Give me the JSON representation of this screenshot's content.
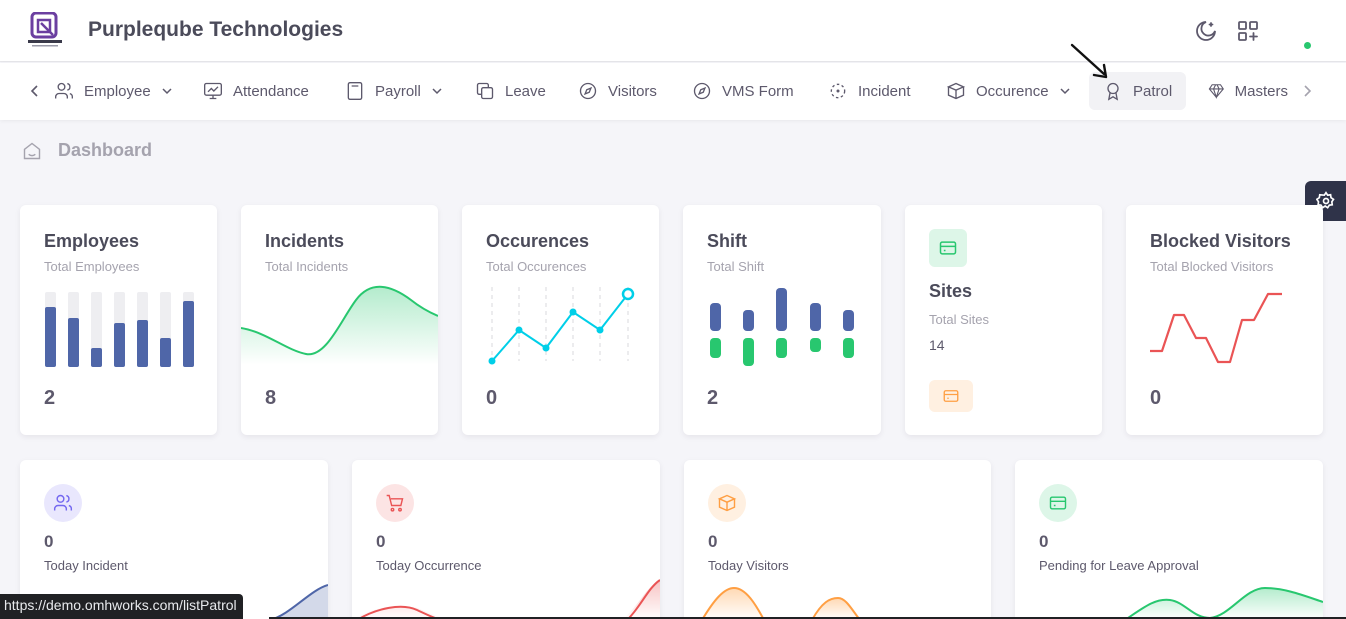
{
  "header": {
    "company_name": "Purpleqube Technologies",
    "logo_icon": "purpleqube-logo",
    "brand_color": "#7367f0",
    "theme_icon": "moon-icon",
    "shortcuts_icon": "grid-plus-icon"
  },
  "nav": {
    "items": [
      {
        "label": "Employee",
        "icon": "users-icon",
        "dropdown": true
      },
      {
        "label": "Attendance",
        "icon": "monitor-icon",
        "dropdown": false
      },
      {
        "label": "Payroll",
        "icon": "calculator-icon",
        "dropdown": true
      },
      {
        "label": "Leave",
        "icon": "copy-icon",
        "dropdown": false
      },
      {
        "label": "Visitors",
        "icon": "compass-icon",
        "dropdown": false
      },
      {
        "label": "VMS Form",
        "icon": "compass-icon",
        "dropdown": false
      },
      {
        "label": "Incident",
        "icon": "scan-icon",
        "dropdown": false
      },
      {
        "label": "Occurence",
        "icon": "box-icon",
        "dropdown": true
      },
      {
        "label": "Patrol",
        "icon": "award-icon",
        "dropdown": false,
        "active": true
      },
      {
        "label": "Masters",
        "icon": "diamond-icon",
        "dropdown": false
      }
    ]
  },
  "breadcrumb": {
    "label": "Dashboard",
    "icon": "home-icon"
  },
  "cards": {
    "employees": {
      "title": "Employees",
      "subtitle": "Total Employees",
      "value": "2",
      "bars": [
        0.8,
        0.65,
        0.25,
        0.58,
        0.62,
        0.38,
        0.88
      ]
    },
    "incidents": {
      "title": "Incidents",
      "subtitle": "Total Incidents",
      "value": "8"
    },
    "occurences": {
      "title": "Occurences",
      "subtitle": "Total Occurences",
      "value": "0"
    },
    "shift": {
      "title": "Shift",
      "subtitle": "Total Shift",
      "value": "2"
    },
    "sites": {
      "title": "Sites",
      "subtitle": "Total Sites",
      "value": "14",
      "icon": "credit-card-icon"
    },
    "blocked_visitors": {
      "title": "Blocked Visitors",
      "subtitle": "Total Blocked Visitors",
      "value": "0"
    }
  },
  "stats": {
    "today_incident": {
      "value": "0",
      "label": "Today Incident",
      "icon": "users-icon",
      "color": "#7367f0"
    },
    "today_occurrence": {
      "value": "0",
      "label": "Today Occurrence",
      "icon": "cart-icon",
      "color": "#ea5455"
    },
    "today_visitors": {
      "value": "0",
      "label": "Today Visitors",
      "icon": "box-icon",
      "color": "#ff9f43"
    },
    "pending_leave": {
      "value": "0",
      "label": "Pending for Leave Approval",
      "icon": "credit-card-icon",
      "color": "#28c76f"
    }
  },
  "status_url": "https://demo.omhworks.com/listPatrol",
  "colors": {
    "navy": "#4f66a8",
    "green": "#28c76f",
    "cyan": "#00cfe8",
    "red": "#ea5455",
    "orange": "#ff9f43"
  }
}
